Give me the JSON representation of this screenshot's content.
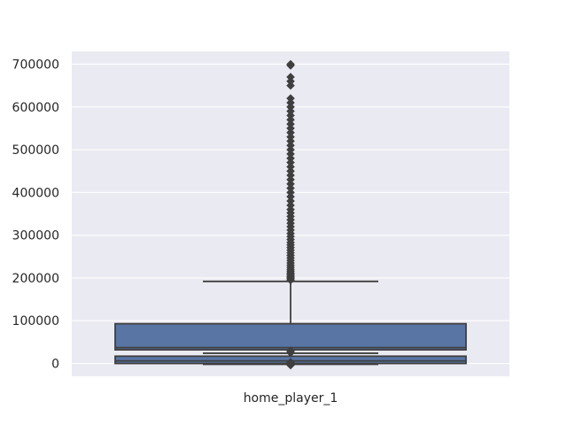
{
  "chart_data": {
    "type": "box",
    "title": "",
    "xlabel": "",
    "ylabel": "",
    "categories": [
      "home_player_1"
    ],
    "ylim": [
      -30000,
      730000
    ],
    "yticks": [
      0,
      100000,
      200000,
      300000,
      400000,
      500000,
      600000,
      700000
    ],
    "ytick_labels": [
      "0",
      "100000",
      "200000",
      "300000",
      "400000",
      "500000",
      "600000",
      "700000"
    ],
    "grid": true,
    "background": "#eaeaf2",
    "colors": {
      "box_fill": "#5875a4",
      "line": "#3f3f3f",
      "grid": "#ffffff"
    },
    "boxes": [
      {
        "category": "home_player_1",
        "q1": 32000,
        "median": 37000,
        "q3": 93000,
        "whisker_low": 0,
        "whisker_high": 192000,
        "outliers": [
          195000,
          198000,
          200000,
          203000,
          206000,
          209000,
          212000,
          216000,
          220000,
          225000,
          230000,
          235000,
          241000,
          247000,
          253000,
          259000,
          265000,
          271000,
          277000,
          283000,
          290000,
          297000,
          304000,
          312000,
          320000,
          328000,
          336000,
          344000,
          352000,
          360000,
          370000,
          380000,
          390000,
          400000,
          410000,
          420000,
          430000,
          440000,
          450000,
          460000,
          470000,
          480000,
          490000,
          500000,
          510000,
          520000,
          530000,
          540000,
          550000,
          560000,
          570000,
          580000,
          590000,
          600000,
          610000,
          620000,
          650000,
          660000,
          670000,
          697000,
          700000
        ]
      },
      {
        "category": "home_player_1",
        "q1": 0,
        "median": 6000,
        "q3": 17000,
        "whisker_low": -2000,
        "whisker_high": 24000,
        "outliers": [
          -4000,
          -1000,
          1000,
          3000,
          25000,
          28000,
          30000
        ]
      }
    ]
  }
}
